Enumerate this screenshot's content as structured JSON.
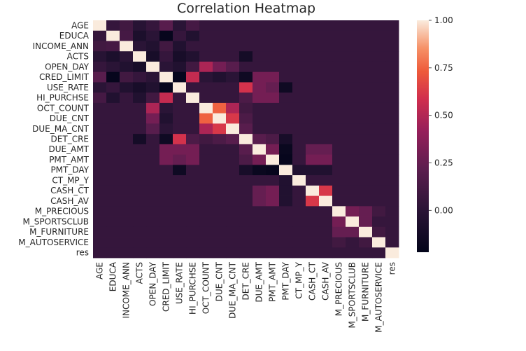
{
  "chart_data": {
    "type": "heatmap",
    "title": "Correlation Heatmap",
    "xlabel": "",
    "ylabel": "",
    "labels": [
      "AGE",
      "EDUCA",
      "INCOME_ANN",
      "ACTS",
      "OPEN_DAY",
      "CRED_LIMIT",
      "USE_RATE",
      "HI_PURCHSE",
      "OCT_COUNT",
      "DUE_CNT",
      "DUE_MA_CNT",
      "DET_CRE",
      "DUE_AMT",
      "PMT_AMT",
      "PMT_DAY",
      "CT_MP_Y",
      "CASH_CT",
      "CASH_AV",
      "M_PRECIOUS",
      "M_SPORTSCLUB",
      "M_FURNITURE",
      "M_AUTOSERVICE",
      "res"
    ],
    "colorbar": {
      "min": -0.22,
      "max": 1.0,
      "ticks": [
        1.0,
        0.75,
        0.5,
        0.25,
        0.0
      ],
      "tick_labels": [
        "1.00",
        "0.75",
        "0.50",
        "0.25",
        "0.00"
      ]
    },
    "default_value": 0.05,
    "cells": [
      [
        0,
        2,
        0.1
      ],
      [
        0,
        3,
        -0.02
      ],
      [
        0,
        5,
        0.2
      ],
      [
        0,
        6,
        0.0
      ],
      [
        0,
        7,
        0.12
      ],
      [
        1,
        2,
        0.12
      ],
      [
        1,
        3,
        -0.08
      ],
      [
        1,
        4,
        0.0
      ],
      [
        1,
        5,
        -0.2
      ],
      [
        1,
        7,
        -0.05
      ],
      [
        2,
        3,
        0.0
      ],
      [
        2,
        4,
        -0.05
      ],
      [
        2,
        5,
        0.1
      ],
      [
        2,
        6,
        -0.05
      ],
      [
        3,
        4,
        -0.1
      ],
      [
        3,
        5,
        0.05
      ],
      [
        3,
        6,
        -0.1
      ],
      [
        3,
        7,
        -0.05
      ],
      [
        3,
        11,
        -0.12
      ],
      [
        4,
        5,
        0.0
      ],
      [
        4,
        6,
        -0.05
      ],
      [
        4,
        7,
        0.1
      ],
      [
        4,
        8,
        0.48
      ],
      [
        4,
        9,
        0.3
      ],
      [
        4,
        10,
        0.2
      ],
      [
        5,
        6,
        -0.2
      ],
      [
        5,
        7,
        0.55
      ],
      [
        5,
        8,
        0.0
      ],
      [
        5,
        9,
        -0.05
      ],
      [
        5,
        10,
        0.0
      ],
      [
        5,
        11,
        -0.15
      ],
      [
        5,
        12,
        0.3
      ],
      [
        5,
        13,
        0.3
      ],
      [
        6,
        7,
        0.05
      ],
      [
        6,
        11,
        0.6
      ],
      [
        6,
        12,
        0.3
      ],
      [
        6,
        13,
        0.25
      ],
      [
        6,
        14,
        -0.15
      ],
      [
        7,
        11,
        0.15
      ],
      [
        7,
        12,
        0.3
      ],
      [
        7,
        13,
        0.3
      ],
      [
        8,
        9,
        0.75
      ],
      [
        8,
        10,
        0.48
      ],
      [
        8,
        11,
        0.1
      ],
      [
        9,
        10,
        0.62
      ],
      [
        9,
        11,
        0.15
      ],
      [
        10,
        11,
        0.2
      ],
      [
        11,
        12,
        0.2
      ],
      [
        11,
        13,
        0.15
      ],
      [
        11,
        14,
        -0.1
      ],
      [
        12,
        13,
        0.3
      ],
      [
        12,
        14,
        -0.18
      ],
      [
        12,
        16,
        0.25
      ],
      [
        12,
        17,
        0.25
      ],
      [
        13,
        14,
        -0.2
      ],
      [
        13,
        16,
        0.3
      ],
      [
        13,
        17,
        0.3
      ],
      [
        14,
        15,
        -0.05
      ],
      [
        14,
        16,
        -0.05
      ],
      [
        14,
        17,
        -0.05
      ],
      [
        16,
        17,
        0.62
      ],
      [
        18,
        19,
        0.3
      ],
      [
        18,
        20,
        0.25
      ],
      [
        18,
        21,
        0.1
      ],
      [
        19,
        20,
        0.25
      ],
      [
        20,
        21,
        0.1
      ]
    ]
  }
}
